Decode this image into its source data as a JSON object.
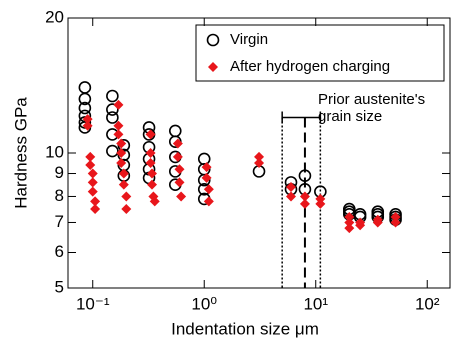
{
  "chart_data": {
    "type": "scatter",
    "xlabel": "Indentation size   μm",
    "ylabel": "Hardness   GPa",
    "xscale": "log",
    "yscale": "log",
    "xlim": [
      0.06,
      160
    ],
    "ylim": [
      5,
      20
    ],
    "xticks": [
      {
        "value": 0.1,
        "label": "10⁻¹"
      },
      {
        "value": 1,
        "label": "10⁰"
      },
      {
        "value": 10,
        "label": "10¹"
      },
      {
        "value": 100,
        "label": "10²"
      }
    ],
    "yticks": [
      5,
      6,
      7,
      8,
      9,
      10,
      20
    ],
    "legend": "upper right",
    "series": [
      {
        "name": "Virgin",
        "color": "#000000",
        "marker": "circle",
        "x": [
          0.085,
          0.085,
          0.085,
          0.085,
          0.085,
          0.085,
          0.15,
          0.15,
          0.15,
          0.15,
          0.15,
          0.19,
          0.19,
          0.19,
          0.19,
          0.32,
          0.32,
          0.32,
          0.32,
          0.32,
          0.32,
          0.55,
          0.55,
          0.55,
          0.55,
          0.55,
          1.0,
          1.0,
          1.0,
          1.0,
          1.0,
          3.1,
          6,
          6,
          8,
          8,
          11,
          20,
          20,
          20,
          25,
          25,
          36,
          36,
          36,
          52,
          52,
          52
        ],
        "values": [
          14.0,
          13.2,
          12.6,
          12.1,
          11.7,
          11.4,
          13.4,
          12.5,
          12.0,
          11.0,
          10.1,
          10.4,
          9.9,
          9.4,
          8.9,
          11.4,
          11.0,
          10.3,
          9.7,
          9.2,
          8.8,
          11.2,
          10.6,
          9.8,
          9.1,
          8.5,
          9.7,
          9.2,
          8.7,
          8.3,
          7.9,
          9.1,
          8.6,
          8.3,
          8.9,
          8.3,
          8.2,
          7.5,
          7.4,
          7.3,
          7.3,
          7.2,
          7.4,
          7.3,
          7.2,
          7.3,
          7.2,
          7.1
        ]
      },
      {
        "name": "After hydrogen charging",
        "color": "#e8161b",
        "marker": "diamond",
        "x": [
          0.09,
          0.09,
          0.095,
          0.095,
          0.1,
          0.1,
          0.1,
          0.105,
          0.105,
          0.17,
          0.17,
          0.17,
          0.18,
          0.18,
          0.18,
          0.19,
          0.19,
          0.2,
          0.2,
          0.33,
          0.33,
          0.33,
          0.34,
          0.34,
          0.35,
          0.36,
          0.58,
          0.58,
          0.6,
          0.6,
          0.62,
          1.05,
          1.05,
          1.1,
          1.1,
          3.1,
          3.1,
          6,
          6,
          8,
          8,
          11,
          11,
          20,
          20,
          20,
          25,
          25,
          36,
          36,
          52,
          52
        ],
        "values": [
          11.9,
          11.5,
          9.8,
          9.4,
          9.0,
          8.6,
          8.2,
          7.8,
          7.5,
          12.8,
          11.5,
          11.0,
          10.5,
          10.0,
          9.5,
          9.0,
          8.5,
          8.0,
          7.5,
          11.0,
          10.0,
          9.5,
          9.0,
          8.5,
          8.0,
          7.8,
          10.5,
          9.8,
          9.2,
          8.6,
          8.0,
          9.3,
          8.8,
          8.3,
          7.8,
          9.8,
          9.5,
          8.4,
          8.0,
          8.0,
          7.7,
          7.9,
          7.7,
          7.2,
          7.0,
          6.8,
          7.0,
          6.9,
          7.1,
          7.0,
          7.2,
          7.0
        ]
      }
    ],
    "reference_lines": [
      {
        "x": 5,
        "style": "dotted"
      },
      {
        "x": 8,
        "style": "dashed"
      },
      {
        "x": 11,
        "style": "dotted"
      }
    ],
    "bracket_y": 12,
    "annotation": [
      "Prior austenite's",
      "grain size"
    ]
  }
}
